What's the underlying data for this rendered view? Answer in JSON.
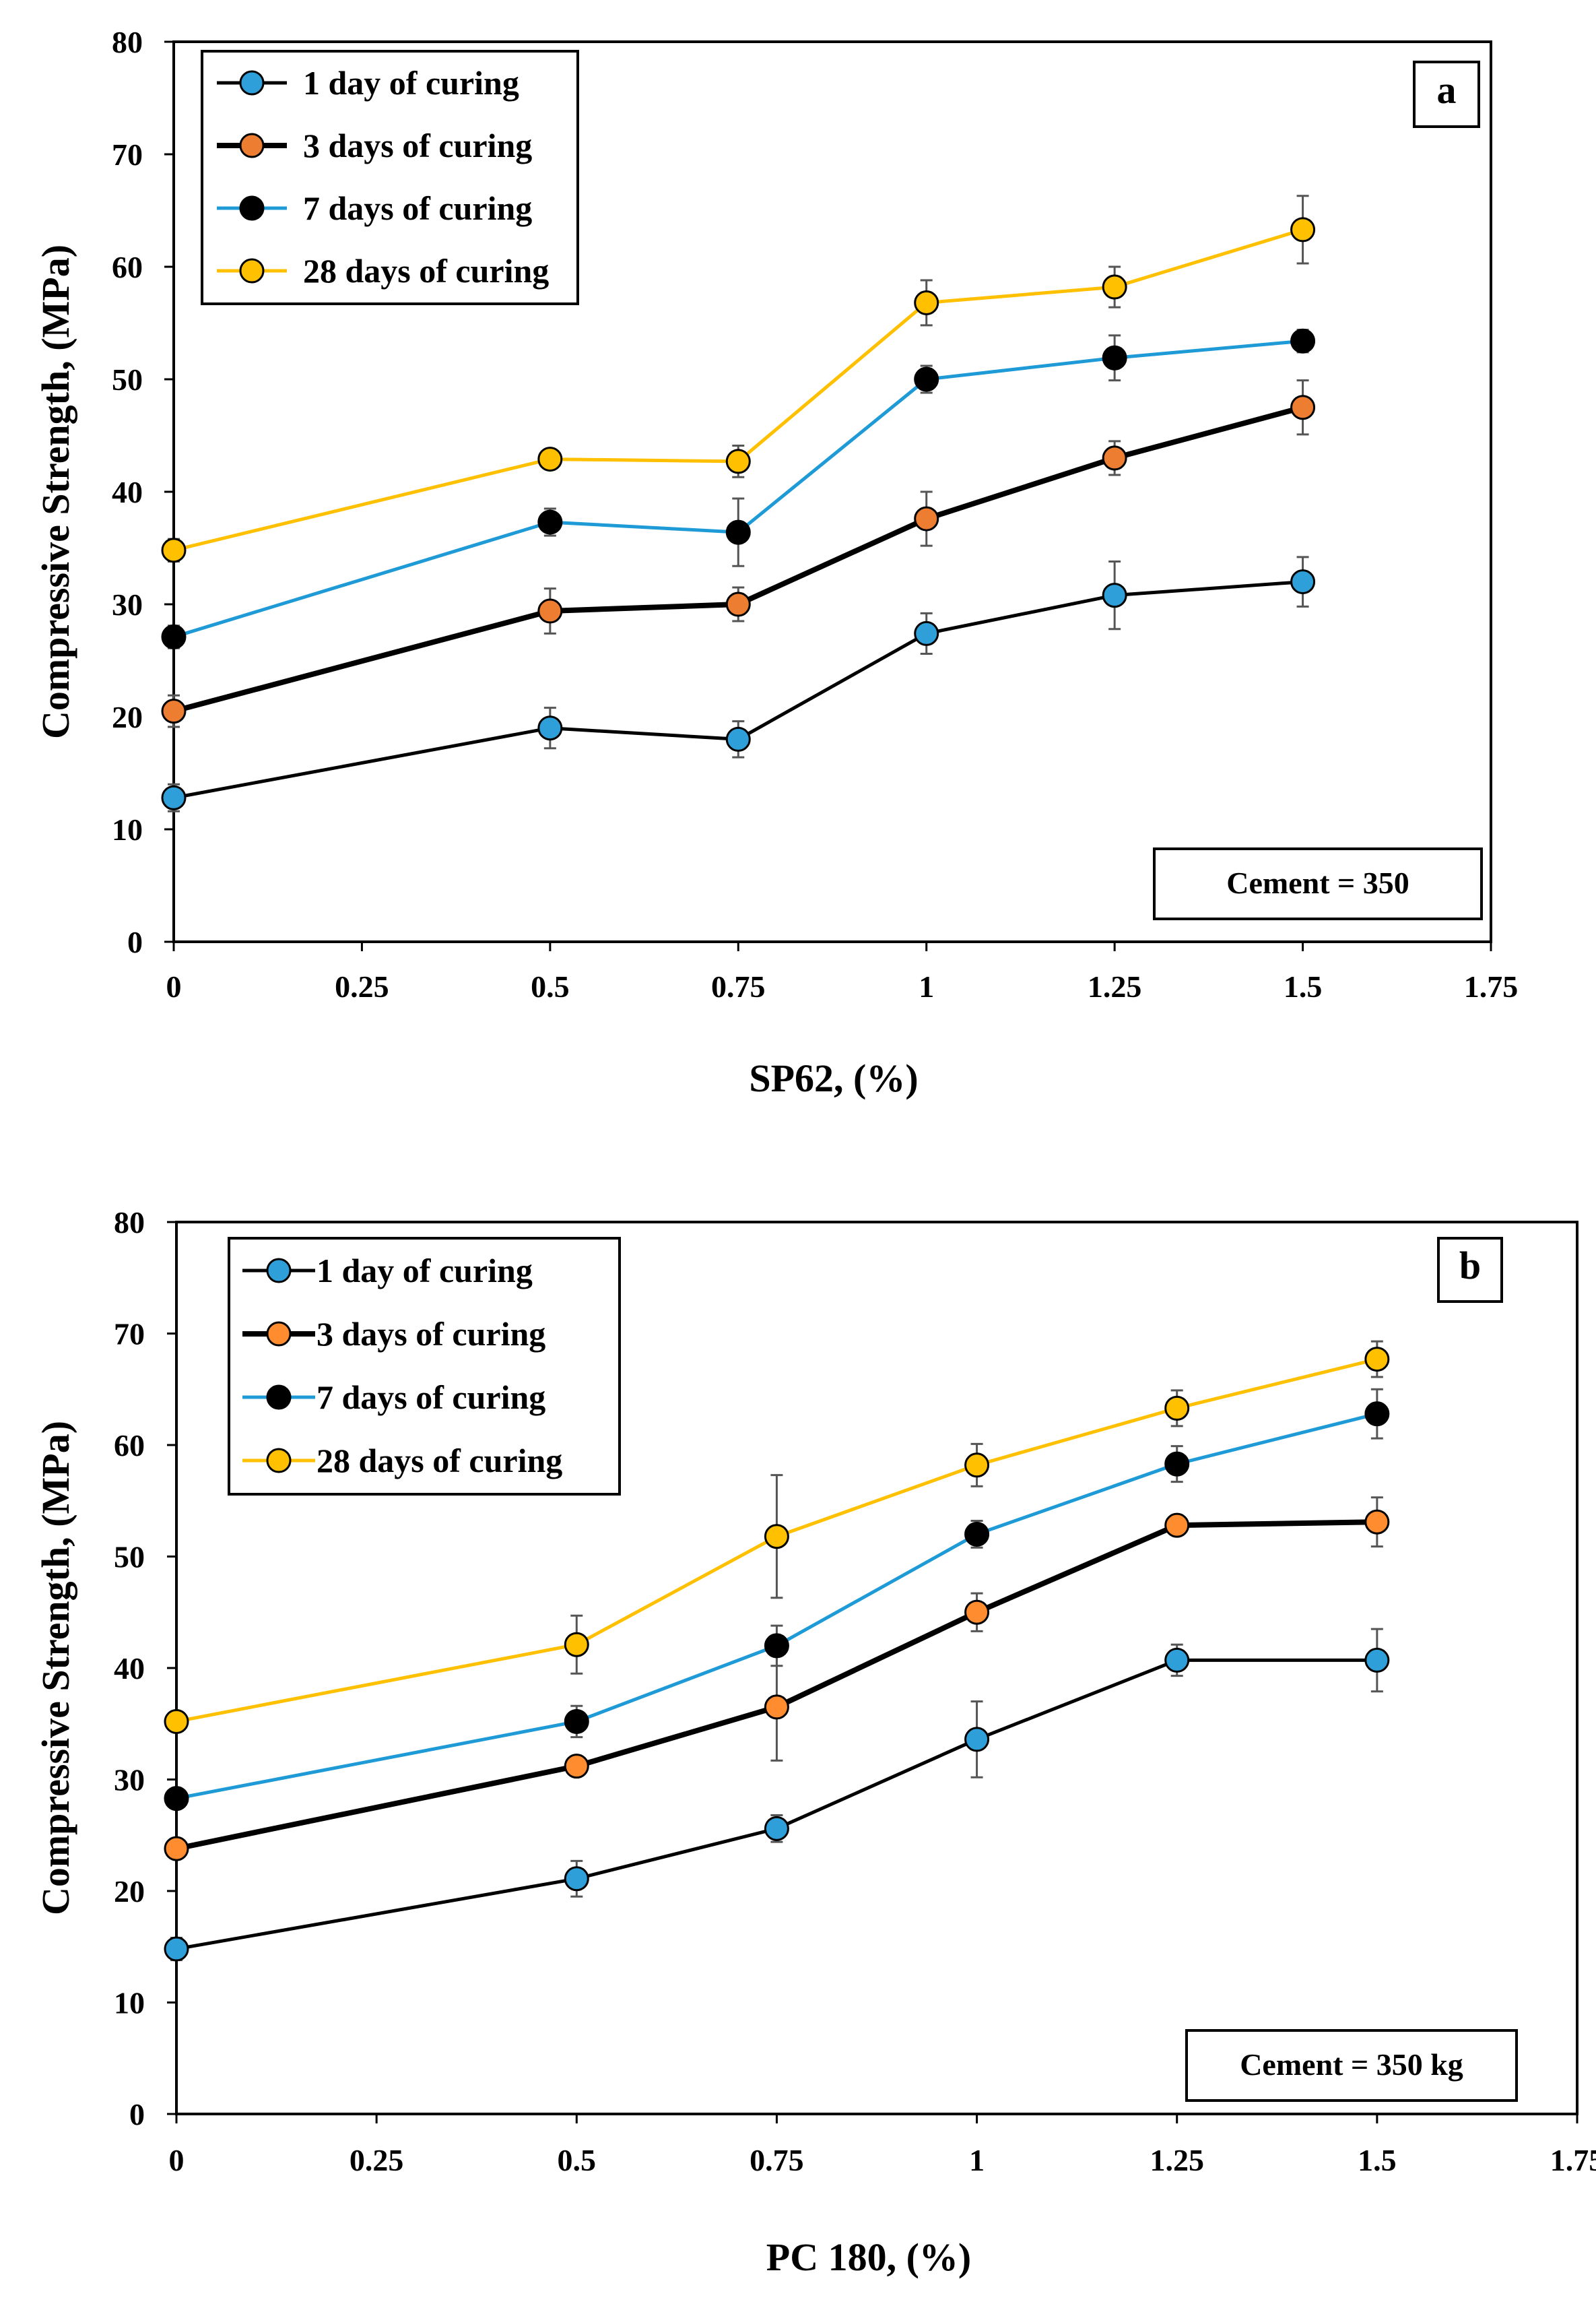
{
  "chart_data": [
    {
      "type": "line",
      "panel_label": "a",
      "annotation": "Cement = 350",
      "xlabel": "SP62, (%)",
      "ylabel": "Compressive  Strength, (MPa)",
      "xlim": [
        0,
        1.75
      ],
      "ylim": [
        0,
        80
      ],
      "x_ticks": [
        "0",
        "0.25",
        "0.5",
        "0.75",
        "1",
        "1.25",
        "1.5",
        "1.75"
      ],
      "y_ticks": [
        "0",
        "10",
        "20",
        "30",
        "40",
        "50",
        "60",
        "70",
        "80"
      ],
      "x": [
        0,
        0.5,
        0.75,
        1,
        1.25,
        1.5
      ],
      "series": [
        {
          "name": "1 day of curing",
          "line": "#000000",
          "fill": "#2e9fd8",
          "width": 5,
          "values": [
            12.8,
            19.0,
            18.0,
            27.4,
            30.8,
            32.0
          ],
          "errors": [
            1.2,
            1.8,
            1.6,
            1.8,
            3.0,
            2.2
          ]
        },
        {
          "name": "3 days of curing",
          "line": "#000000",
          "fill": "#ed7d31",
          "width": 8,
          "values": [
            20.5,
            29.4,
            30.0,
            37.6,
            43.0,
            47.5
          ],
          "errors": [
            1.4,
            2.0,
            1.5,
            2.4,
            1.5,
            2.4
          ]
        },
        {
          "name": "7 days of curing",
          "line": "#1e9ad6",
          "fill": "#000000",
          "width": 5,
          "values": [
            27.1,
            37.3,
            36.4,
            50.0,
            51.9,
            53.4
          ],
          "errors": [
            1.0,
            1.2,
            3.0,
            1.2,
            2.0,
            1.0
          ]
        },
        {
          "name": "28 days of curing",
          "line": "#ffc000",
          "fill": "#ffc000",
          "width": 5,
          "values": [
            34.8,
            42.9,
            42.7,
            56.8,
            58.2,
            63.3
          ],
          "errors": [
            1.0,
            0.8,
            1.4,
            2.0,
            1.8,
            3.0
          ]
        }
      ]
    },
    {
      "type": "line",
      "panel_label": "b",
      "annotation": "Cement = 350 kg",
      "xlabel": "PC 180, (%)",
      "ylabel": "Compressive  Strength, (MPa)",
      "xlim": [
        0,
        1.75
      ],
      "ylim": [
        0,
        80
      ],
      "x_ticks": [
        "0",
        "0.25",
        "0.5",
        "0.75",
        "1",
        "1.25",
        "1.5",
        "1.75"
      ],
      "y_ticks": [
        "0",
        "10",
        "20",
        "30",
        "40",
        "50",
        "60",
        "70",
        "80"
      ],
      "x": [
        0,
        0.5,
        0.75,
        1,
        1.25,
        1.5
      ],
      "series": [
        {
          "name": "1 day of curing",
          "line": "#000000",
          "fill": "#2e9fd8",
          "width": 5,
          "values": [
            14.8,
            21.1,
            25.6,
            33.6,
            40.7,
            40.7
          ],
          "errors": [
            1.0,
            1.6,
            1.2,
            3.4,
            1.4,
            2.8
          ]
        },
        {
          "name": "3 days of curing",
          "line": "#000000",
          "fill": "#ff8c2e",
          "width": 8,
          "values": [
            23.8,
            31.2,
            36.5,
            45.0,
            52.8,
            53.1
          ],
          "errors": [
            0.6,
            0.6,
            4.8,
            1.7,
            0.6,
            2.2
          ]
        },
        {
          "name": "7 days of curing",
          "line": "#1e9ad6",
          "fill": "#000000",
          "width": 5,
          "values": [
            28.3,
            35.2,
            42.0,
            52.0,
            58.3,
            62.8
          ],
          "errors": [
            0.6,
            1.4,
            1.8,
            1.2,
            1.6,
            2.2
          ]
        },
        {
          "name": "28 days of curing",
          "line": "#ffc000",
          "fill": "#ffc000",
          "width": 5,
          "values": [
            35.2,
            42.1,
            51.8,
            58.2,
            63.3,
            67.7
          ],
          "errors": [
            0.8,
            2.6,
            5.5,
            1.9,
            1.6,
            1.6
          ]
        }
      ]
    }
  ]
}
